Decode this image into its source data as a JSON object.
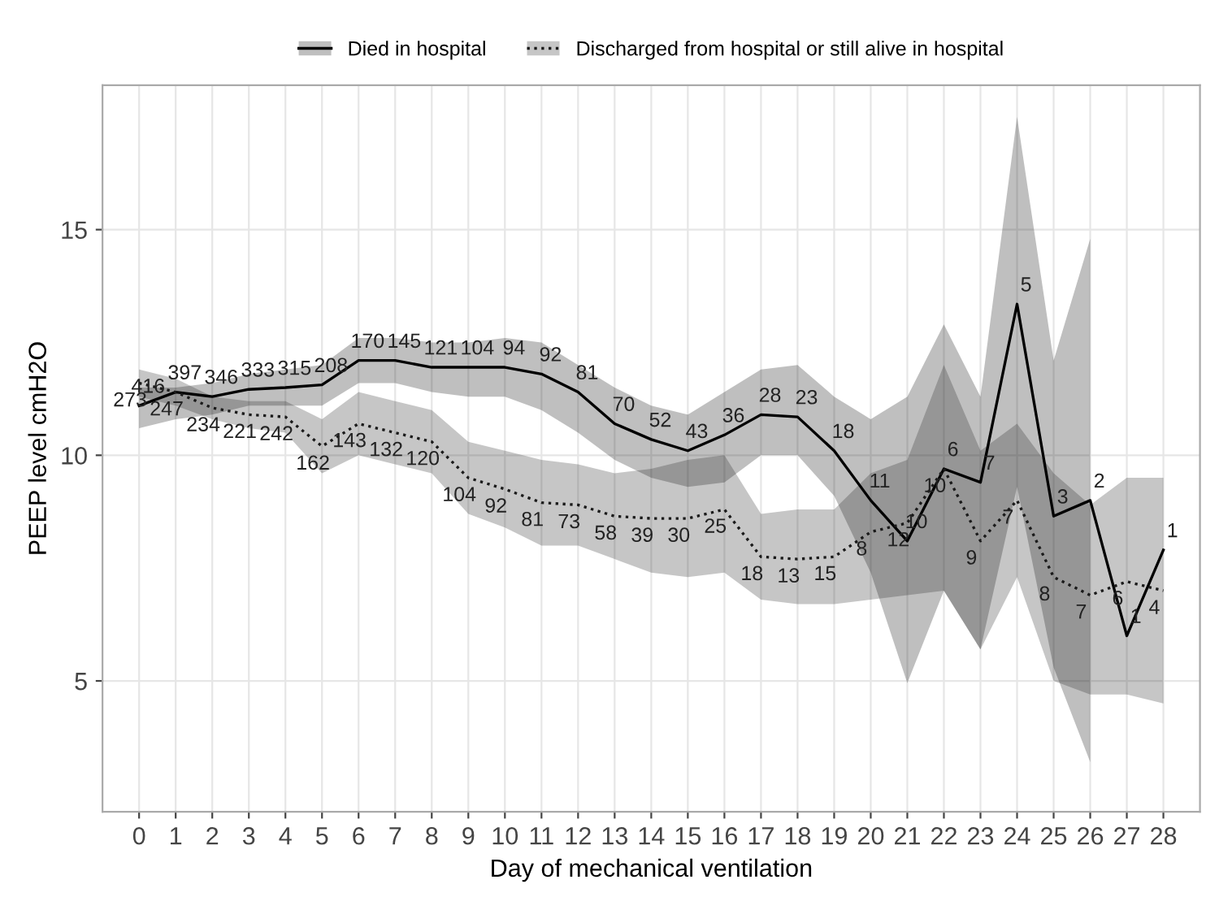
{
  "chart_data": {
    "type": "line",
    "xlabel": "Day of mechanical ventilation",
    "ylabel": "PEEP level cmH2O",
    "x": [
      0,
      1,
      2,
      3,
      4,
      5,
      6,
      7,
      8,
      9,
      10,
      11,
      12,
      13,
      14,
      15,
      16,
      17,
      18,
      19,
      20,
      21,
      22,
      23,
      24,
      25,
      26,
      27,
      28
    ],
    "xlim": [
      -1,
      29
    ],
    "xticks": [
      0,
      1,
      2,
      3,
      4,
      5,
      6,
      7,
      8,
      9,
      10,
      11,
      12,
      13,
      14,
      15,
      16,
      17,
      18,
      19,
      20,
      21,
      22,
      23,
      24,
      25,
      26,
      27,
      28
    ],
    "ylim": [
      2.1,
      18.2
    ],
    "yticks": [
      5,
      10,
      15
    ],
    "grid": true,
    "legend": "top",
    "marker": "none",
    "series": [
      {
        "name": "Died in hospital",
        "color": "#000000",
        "line_style": "solid",
        "values": [
          11.1,
          11.4,
          11.3,
          11.46,
          11.5,
          11.56,
          12.1,
          12.1,
          11.95,
          11.95,
          11.95,
          11.8,
          11.4,
          10.7,
          10.35,
          10.1,
          10.45,
          10.9,
          10.85,
          10.1,
          9.0,
          8.1,
          9.7,
          9.4,
          13.35,
          8.65,
          9.0,
          6.0,
          7.9
        ],
        "lower": [
          10.6,
          10.8,
          10.9,
          11.1,
          11.1,
          11.1,
          11.6,
          11.6,
          11.4,
          11.3,
          11.3,
          11.0,
          10.5,
          9.9,
          9.5,
          9.3,
          9.4,
          10.0,
          10.0,
          9.1,
          7.4,
          4.95,
          7.0,
          5.7,
          9.3,
          5.3,
          3.2,
          null,
          null
        ],
        "upper": [
          11.5,
          11.5,
          11.6,
          11.8,
          11.9,
          12.0,
          12.6,
          12.6,
          12.5,
          12.5,
          12.6,
          12.5,
          12.0,
          11.5,
          11.1,
          10.9,
          11.4,
          11.9,
          12.0,
          11.3,
          10.8,
          11.3,
          12.9,
          11.3,
          17.5,
          12.1,
          14.8,
          null,
          null
        ]
      },
      {
        "name": "Discharged from hospital or still alive in hospital",
        "color": "#1a1a1a",
        "line_style": "dotted",
        "values": [
          11.6,
          11.4,
          11.05,
          10.9,
          10.85,
          10.2,
          10.7,
          10.5,
          10.3,
          9.5,
          9.25,
          8.95,
          8.9,
          8.65,
          8.6,
          8.6,
          8.8,
          7.75,
          7.7,
          7.75,
          8.3,
          8.5,
          9.7,
          8.1,
          9.0,
          7.3,
          6.9,
          7.2,
          7.0
        ],
        "lower": [
          11.3,
          11.1,
          10.8,
          10.6,
          10.5,
          9.6,
          10.0,
          9.8,
          9.6,
          8.7,
          8.4,
          8.0,
          8.0,
          7.7,
          7.4,
          7.3,
          7.4,
          6.8,
          6.7,
          6.7,
          6.8,
          6.9,
          7.0,
          5.7,
          7.3,
          5.0,
          4.7,
          4.7,
          4.5
        ],
        "upper": [
          11.9,
          11.7,
          11.3,
          11.2,
          11.2,
          10.8,
          11.4,
          11.2,
          11.0,
          10.3,
          10.1,
          9.9,
          9.8,
          9.6,
          9.7,
          9.9,
          10.0,
          8.7,
          8.8,
          8.8,
          9.6,
          9.9,
          12.0,
          10.1,
          10.7,
          9.6,
          8.9,
          9.5,
          9.5
        ]
      }
    ],
    "annotations": [
      {
        "text": "416",
        "x": 0,
        "y": 11.1
      },
      {
        "text": "397",
        "x": 1,
        "y": 11.4
      },
      {
        "text": "346",
        "x": 2,
        "y": 11.3
      },
      {
        "text": "333",
        "x": 3,
        "y": 11.46
      },
      {
        "text": "315",
        "x": 4,
        "y": 11.5
      },
      {
        "text": "208",
        "x": 5,
        "y": 11.56
      },
      {
        "text": "170",
        "x": 6,
        "y": 12.1
      },
      {
        "text": "145",
        "x": 7,
        "y": 12.1
      },
      {
        "text": "121",
        "x": 8,
        "y": 11.95
      },
      {
        "text": "104",
        "x": 9,
        "y": 11.95
      },
      {
        "text": "94",
        "x": 10,
        "y": 11.95
      },
      {
        "text": "92",
        "x": 11,
        "y": 11.8
      },
      {
        "text": "81",
        "x": 12,
        "y": 11.4
      },
      {
        "text": "70",
        "x": 13,
        "y": 10.7
      },
      {
        "text": "52",
        "x": 14,
        "y": 10.35
      },
      {
        "text": "43",
        "x": 15,
        "y": 10.1
      },
      {
        "text": "36",
        "x": 16,
        "y": 10.45
      },
      {
        "text": "28",
        "x": 17,
        "y": 10.9
      },
      {
        "text": "23",
        "x": 18,
        "y": 10.85
      },
      {
        "text": "18",
        "x": 19,
        "y": 10.1
      },
      {
        "text": "11",
        "x": 20,
        "y": 9.0
      },
      {
        "text": "10",
        "x": 21,
        "y": 8.1
      },
      {
        "text": "6",
        "x": 22,
        "y": 9.7
      },
      {
        "text": "7",
        "x": 23,
        "y": 9.4
      },
      {
        "text": "5",
        "x": 24,
        "y": 13.35
      },
      {
        "text": "3",
        "x": 25,
        "y": 8.65
      },
      {
        "text": "2",
        "x": 26,
        "y": 9.0
      },
      {
        "text": "1",
        "x": 27,
        "y": 6.0
      },
      {
        "text": "1",
        "x": 28,
        "y": 7.9
      },
      {
        "text": "273",
        "x": 0,
        "y": 11.6
      },
      {
        "text": "247",
        "x": 1,
        "y": 11.4
      },
      {
        "text": "234",
        "x": 2,
        "y": 11.05
      },
      {
        "text": "221",
        "x": 3,
        "y": 10.9
      },
      {
        "text": "242",
        "x": 4,
        "y": 10.85
      },
      {
        "text": "162",
        "x": 5,
        "y": 10.2
      },
      {
        "text": "143",
        "x": 6,
        "y": 10.7
      },
      {
        "text": "132",
        "x": 7,
        "y": 10.5
      },
      {
        "text": "120",
        "x": 8,
        "y": 10.3
      },
      {
        "text": "104",
        "x": 9,
        "y": 9.5
      },
      {
        "text": "92",
        "x": 10,
        "y": 9.25
      },
      {
        "text": "81",
        "x": 11,
        "y": 8.95
      },
      {
        "text": "73",
        "x": 12,
        "y": 8.9
      },
      {
        "text": "58",
        "x": 13,
        "y": 8.65
      },
      {
        "text": "39",
        "x": 14,
        "y": 8.6
      },
      {
        "text": "30",
        "x": 15,
        "y": 8.6
      },
      {
        "text": "25",
        "x": 16,
        "y": 8.8
      },
      {
        "text": "18",
        "x": 17,
        "y": 7.75
      },
      {
        "text": "13",
        "x": 18,
        "y": 7.7
      },
      {
        "text": "15",
        "x": 19,
        "y": 7.75
      },
      {
        "text": "8",
        "x": 20,
        "y": 8.3
      },
      {
        "text": "12",
        "x": 21,
        "y": 8.5
      },
      {
        "text": "10",
        "x": 22,
        "y": 9.7
      },
      {
        "text": "9",
        "x": 23,
        "y": 8.1
      },
      {
        "text": "7",
        "x": 24,
        "y": 9.0
      },
      {
        "text": "8",
        "x": 25,
        "y": 7.3
      },
      {
        "text": "7",
        "x": 26,
        "y": 6.9
      },
      {
        "text": "6",
        "x": 27,
        "y": 7.2
      },
      {
        "text": "4",
        "x": 28,
        "y": 7.0
      }
    ]
  }
}
